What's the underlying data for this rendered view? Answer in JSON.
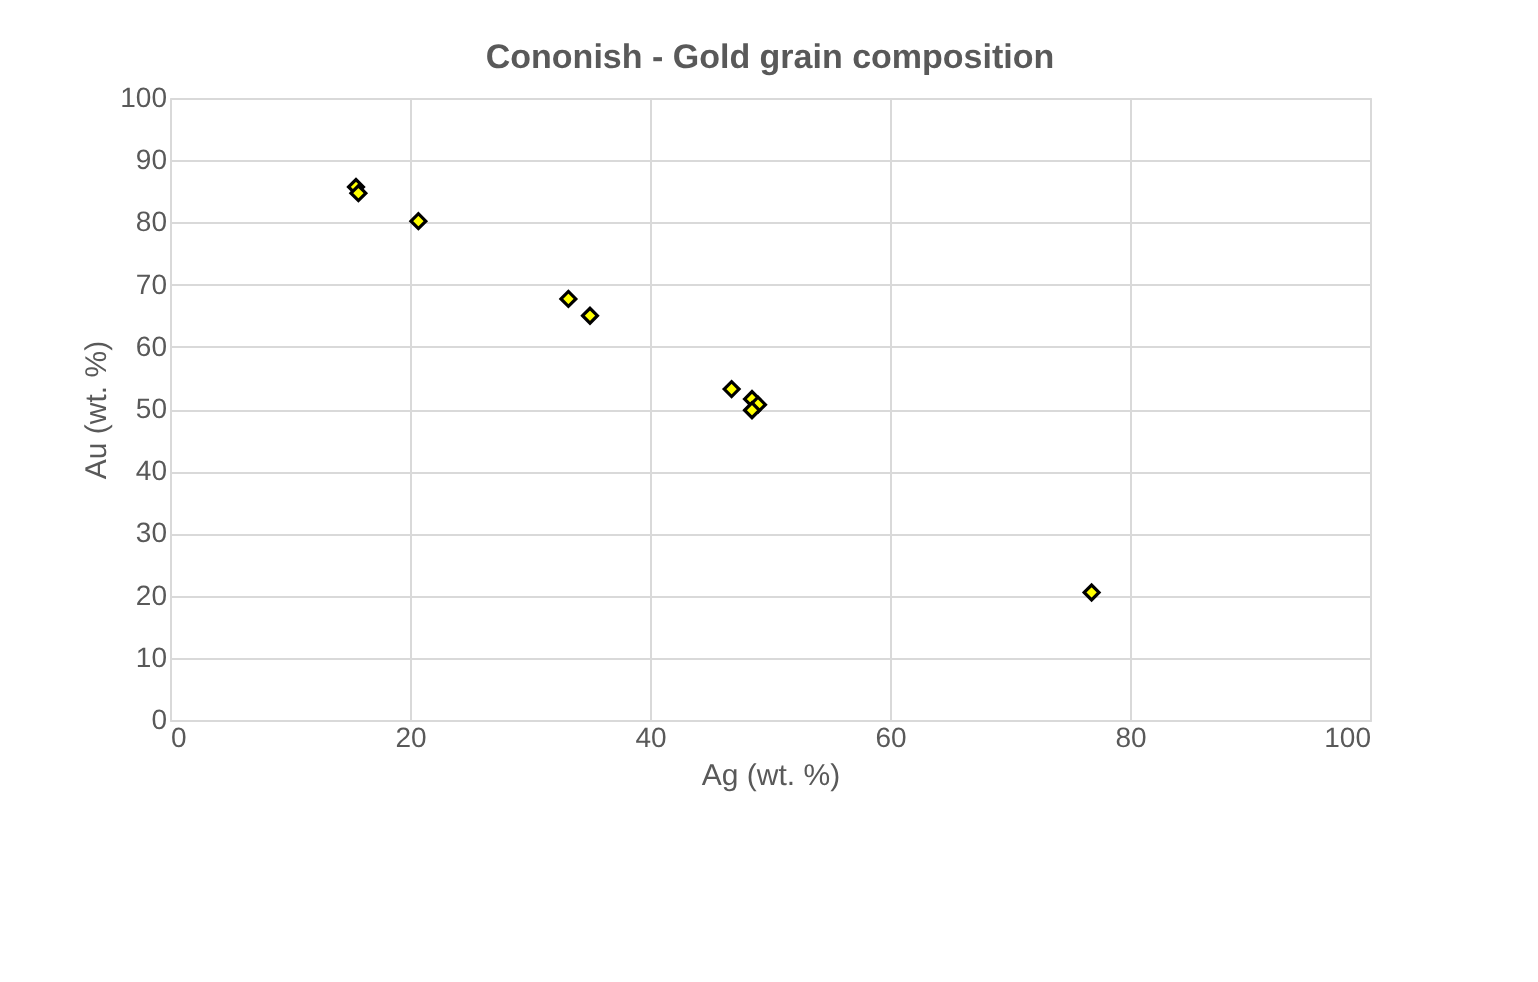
{
  "chart_data": {
    "type": "scatter",
    "title": "Cononish  - Gold grain composition",
    "xlabel": "Ag (wt. %)",
    "ylabel": "Au (wt. %)",
    "x": [
      15.5,
      15.7,
      20.7,
      33.2,
      35.0,
      46.8,
      48.5,
      49.0,
      48.5,
      48.7,
      76.8
    ],
    "series": [
      {
        "color": "#ffff00",
        "values": [
          85.7,
          84.7,
          80.2,
          67.7,
          65.0,
          53.2,
          51.6,
          50.7,
          49.8,
          null,
          20.5
        ]
      }
    ],
    "xlim": [
      0,
      100
    ],
    "xticks": [
      0,
      20,
      40,
      60,
      80,
      100
    ],
    "ylim": [
      0,
      100
    ],
    "yticks": [
      0,
      10,
      20,
      30,
      40,
      50,
      60,
      70,
      80,
      90,
      100
    ],
    "grid": true,
    "marker": "diamond",
    "legend": false
  }
}
